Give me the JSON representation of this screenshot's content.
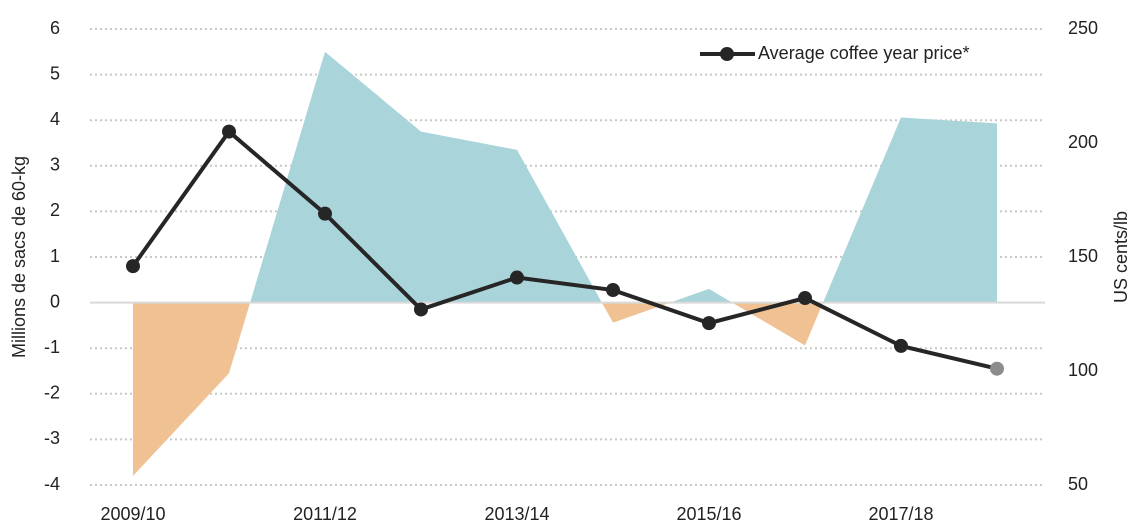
{
  "chart_data": {
    "type": "area_line",
    "categories": [
      "2009/10",
      null,
      "2011/12",
      null,
      "2013/14",
      null,
      "2015/16",
      null,
      "2017/18",
      null
    ],
    "series": [
      {
        "type": "area",
        "color_positive": "#a8d4da",
        "color_negative": "#f0c193",
        "values": [
          -3.8,
          -1.55,
          5.5,
          3.75,
          3.35,
          -0.44,
          0.3,
          -0.94,
          4.06,
          3.93
        ]
      },
      {
        "type": "line",
        "name": "Average coffee year price*",
        "axis": "y2",
        "color": "#262626",
        "last_marker_color": "#8c8c8c",
        "values": [
          146,
          205,
          169,
          127,
          141,
          135.5,
          121,
          132,
          111,
          101
        ]
      }
    ],
    "ylabel": "Millions de sacs de 60-kg",
    "y2label": "US cents/lb",
    "ylim": [
      -4,
      6
    ],
    "yticks": [
      -4,
      -3,
      -2,
      -1,
      0,
      1,
      2,
      3,
      4,
      5,
      6
    ],
    "y2lim": [
      50,
      250
    ],
    "y2ticks": [
      50,
      100,
      150,
      200,
      250
    ],
    "grid": true,
    "legend": "top-right"
  }
}
